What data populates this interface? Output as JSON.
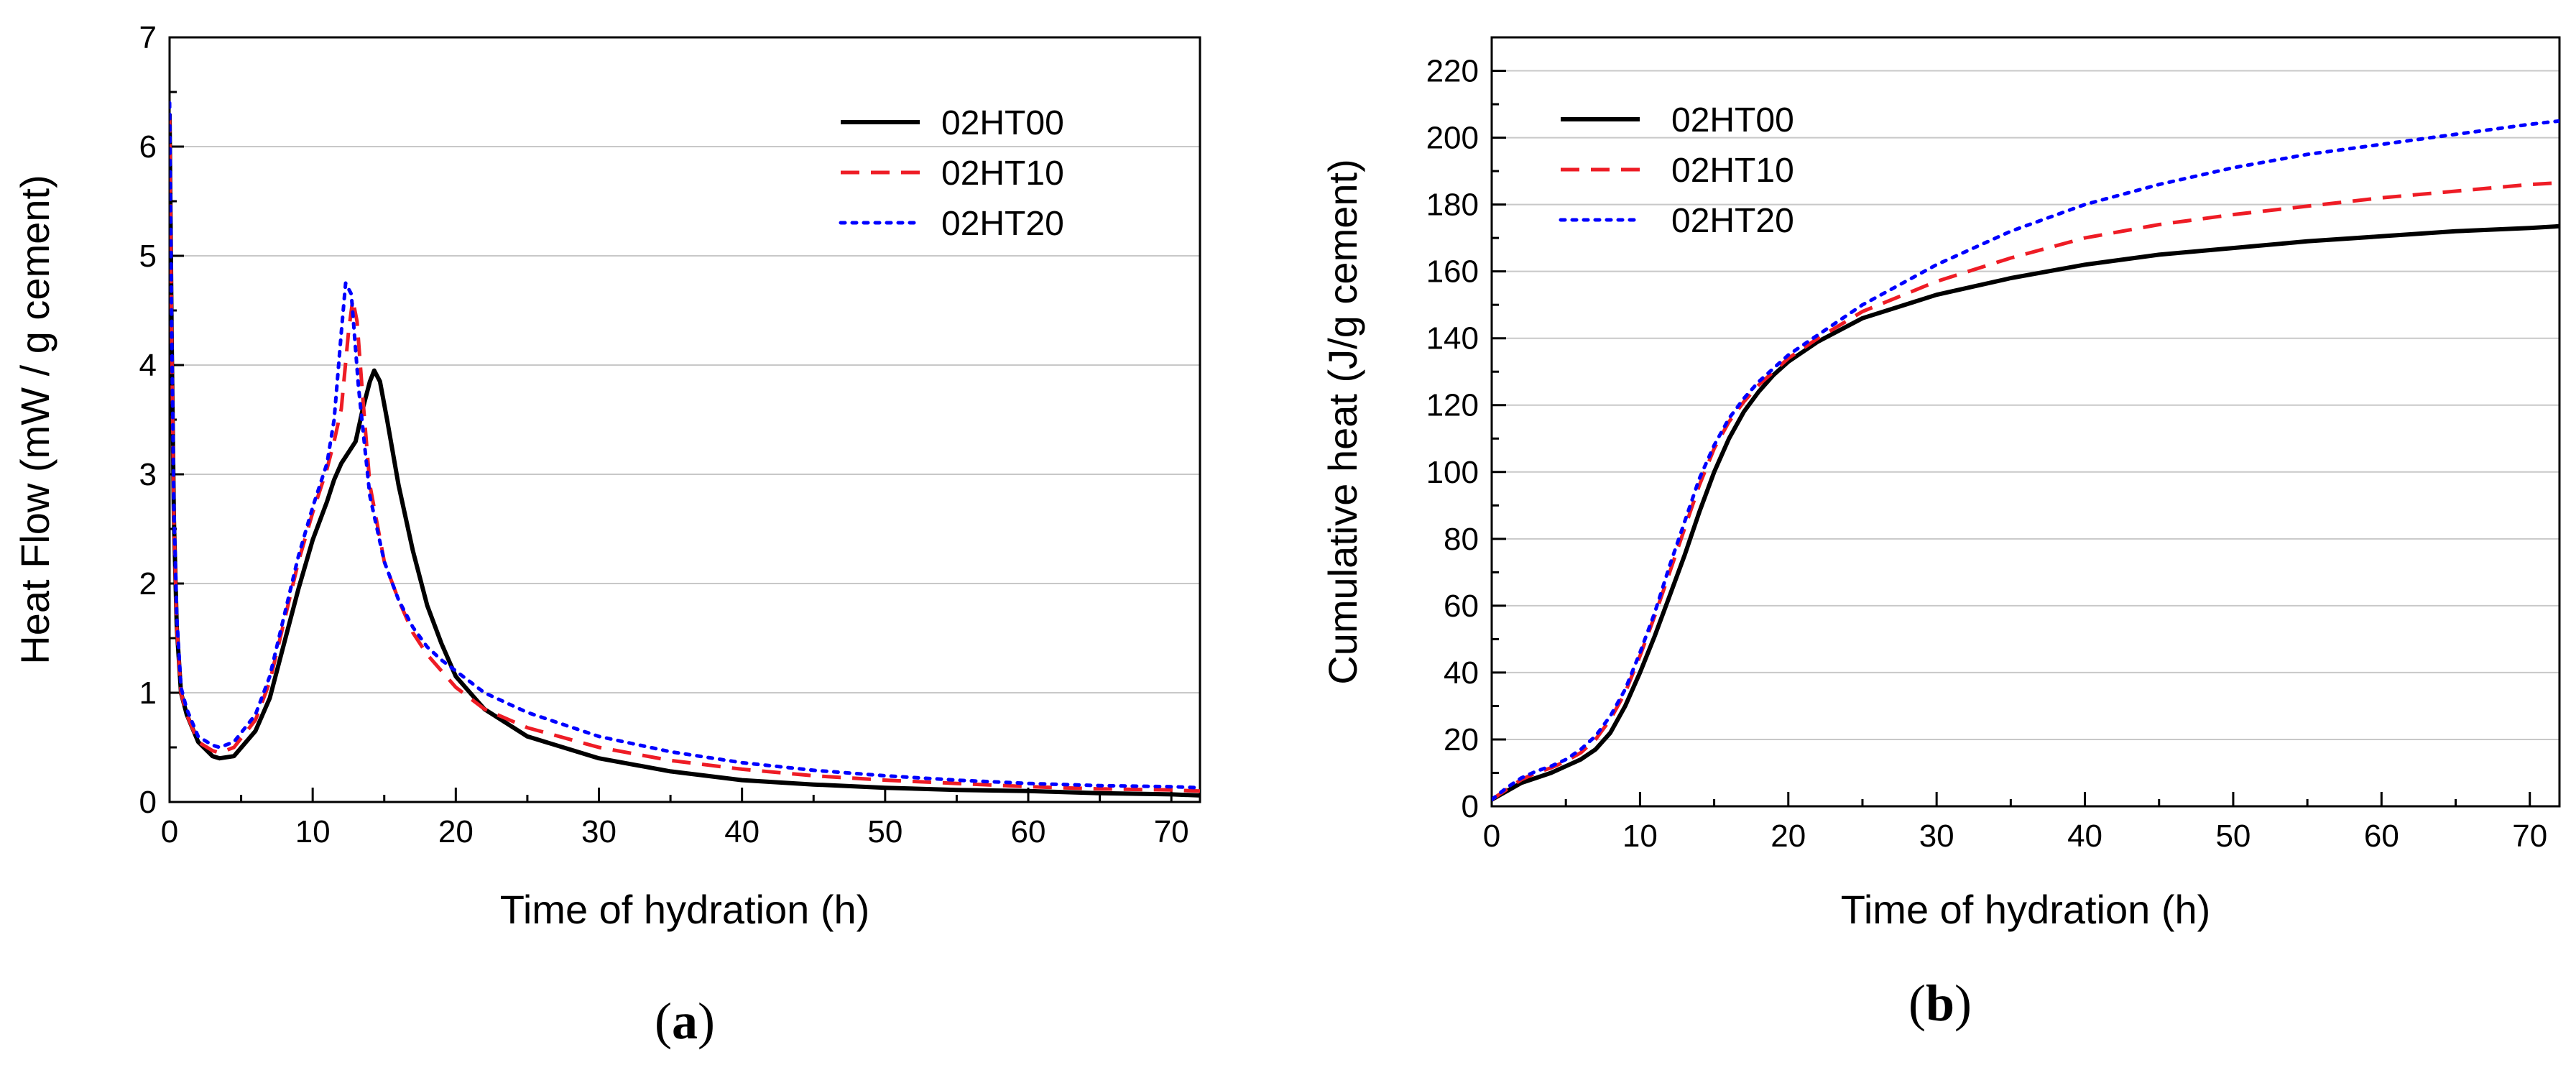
{
  "chart_data": [
    {
      "type": "line",
      "panel_label": "a",
      "xlabel": "Time of hydration (h)",
      "ylabel": "Heat Flow (mW / g cement)",
      "xlim": [
        0,
        72
      ],
      "ylim": [
        0,
        7
      ],
      "xticks": [
        0,
        10,
        20,
        30,
        40,
        50,
        60,
        70
      ],
      "yticks": [
        0,
        1,
        2,
        3,
        4,
        5,
        6,
        7
      ],
      "grid": "horizontal",
      "legend_position": "top-right",
      "series": [
        {
          "name": "02HT00",
          "color": "#000000",
          "style": "solid",
          "points": [
            [
              0,
              6.3
            ],
            [
              0.15,
              4.2
            ],
            [
              0.3,
              2.6
            ],
            [
              0.5,
              1.6
            ],
            [
              0.8,
              1.0
            ],
            [
              1.2,
              0.8
            ],
            [
              2,
              0.55
            ],
            [
              3,
              0.42
            ],
            [
              3.5,
              0.4
            ],
            [
              4.5,
              0.42
            ],
            [
              6,
              0.65
            ],
            [
              7,
              0.95
            ],
            [
              8,
              1.45
            ],
            [
              9,
              1.95
            ],
            [
              10,
              2.4
            ],
            [
              11,
              2.75
            ],
            [
              11.5,
              2.95
            ],
            [
              12,
              3.1
            ],
            [
              13,
              3.3
            ],
            [
              13.5,
              3.6
            ],
            [
              14,
              3.85
            ],
            [
              14.3,
              3.95
            ],
            [
              14.7,
              3.85
            ],
            [
              15.2,
              3.5
            ],
            [
              16,
              2.9
            ],
            [
              17,
              2.3
            ],
            [
              18,
              1.8
            ],
            [
              19,
              1.45
            ],
            [
              20,
              1.15
            ],
            [
              22,
              0.85
            ],
            [
              25,
              0.6
            ],
            [
              30,
              0.4
            ],
            [
              35,
              0.28
            ],
            [
              40,
              0.2
            ],
            [
              45,
              0.16
            ],
            [
              50,
              0.13
            ],
            [
              55,
              0.11
            ],
            [
              60,
              0.1
            ],
            [
              65,
              0.08
            ],
            [
              70,
              0.07
            ],
            [
              72,
              0.06
            ]
          ]
        },
        {
          "name": "02HT10",
          "color": "#ee1c25",
          "style": "dashed",
          "points": [
            [
              0,
              6.3
            ],
            [
              0.15,
              4.2
            ],
            [
              0.3,
              2.6
            ],
            [
              0.5,
              1.6
            ],
            [
              0.8,
              1.0
            ],
            [
              1.2,
              0.8
            ],
            [
              2,
              0.55
            ],
            [
              3,
              0.47
            ],
            [
              3.5,
              0.45
            ],
            [
              4.5,
              0.5
            ],
            [
              6,
              0.75
            ],
            [
              7,
              1.1
            ],
            [
              8,
              1.65
            ],
            [
              9,
              2.2
            ],
            [
              10,
              2.65
            ],
            [
              11,
              3.05
            ],
            [
              11.5,
              3.3
            ],
            [
              12,
              3.6
            ],
            [
              12.5,
              4.3
            ],
            [
              12.8,
              4.6
            ],
            [
              13.1,
              4.4
            ],
            [
              13.5,
              3.7
            ],
            [
              14,
              2.9
            ],
            [
              15,
              2.2
            ],
            [
              16,
              1.85
            ],
            [
              17,
              1.55
            ],
            [
              18,
              1.35
            ],
            [
              19,
              1.2
            ],
            [
              20,
              1.05
            ],
            [
              22,
              0.85
            ],
            [
              25,
              0.68
            ],
            [
              30,
              0.5
            ],
            [
              35,
              0.38
            ],
            [
              40,
              0.3
            ],
            [
              45,
              0.24
            ],
            [
              50,
              0.2
            ],
            [
              55,
              0.17
            ],
            [
              60,
              0.14
            ],
            [
              65,
              0.12
            ],
            [
              70,
              0.11
            ],
            [
              72,
              0.1
            ]
          ]
        },
        {
          "name": "02HT20",
          "color": "#0000ff",
          "style": "dotted",
          "points": [
            [
              0,
              6.4
            ],
            [
              0.15,
              4.3
            ],
            [
              0.3,
              2.7
            ],
            [
              0.5,
              1.7
            ],
            [
              0.8,
              1.05
            ],
            [
              1.2,
              0.85
            ],
            [
              2,
              0.6
            ],
            [
              3,
              0.52
            ],
            [
              3.5,
              0.5
            ],
            [
              4.5,
              0.55
            ],
            [
              6,
              0.8
            ],
            [
              7,
              1.15
            ],
            [
              8,
              1.7
            ],
            [
              9,
              2.25
            ],
            [
              10,
              2.7
            ],
            [
              11,
              3.1
            ],
            [
              11.5,
              3.5
            ],
            [
              12,
              4.3
            ],
            [
              12.3,
              4.75
            ],
            [
              12.7,
              4.65
            ],
            [
              13.2,
              3.8
            ],
            [
              14,
              2.8
            ],
            [
              15,
              2.2
            ],
            [
              16,
              1.85
            ],
            [
              17,
              1.6
            ],
            [
              18,
              1.42
            ],
            [
              19,
              1.3
            ],
            [
              20,
              1.2
            ],
            [
              22,
              1.0
            ],
            [
              25,
              0.82
            ],
            [
              30,
              0.6
            ],
            [
              35,
              0.46
            ],
            [
              40,
              0.36
            ],
            [
              45,
              0.29
            ],
            [
              50,
              0.24
            ],
            [
              55,
              0.2
            ],
            [
              60,
              0.17
            ],
            [
              65,
              0.15
            ],
            [
              70,
              0.14
            ],
            [
              72,
              0.13
            ]
          ]
        }
      ]
    },
    {
      "type": "line",
      "panel_label": "b",
      "xlabel": "Time of hydration (h)",
      "ylabel": "Cumulative heat (J/g cement)",
      "xlim": [
        0,
        72
      ],
      "ylim": [
        0,
        230
      ],
      "xticks": [
        0,
        10,
        20,
        30,
        40,
        50,
        60,
        70
      ],
      "yticks": [
        0,
        20,
        40,
        60,
        80,
        100,
        120,
        140,
        160,
        180,
        200,
        220
      ],
      "grid": "horizontal",
      "legend_position": "top-left",
      "series": [
        {
          "name": "02HT00",
          "color": "#000000",
          "style": "solid",
          "points": [
            [
              0,
              2
            ],
            [
              1,
              4.5
            ],
            [
              2,
              7
            ],
            [
              3,
              8.5
            ],
            [
              4,
              10
            ],
            [
              5,
              12
            ],
            [
              6,
              14
            ],
            [
              7,
              17
            ],
            [
              8,
              22
            ],
            [
              9,
              30
            ],
            [
              10,
              40
            ],
            [
              11,
              51
            ],
            [
              12,
              63
            ],
            [
              13,
              75
            ],
            [
              14,
              88
            ],
            [
              15,
              100
            ],
            [
              16,
              110
            ],
            [
              17,
              118
            ],
            [
              18,
              124
            ],
            [
              19,
              129
            ],
            [
              20,
              133
            ],
            [
              22,
              139
            ],
            [
              25,
              146
            ],
            [
              30,
              153
            ],
            [
              35,
              158
            ],
            [
              40,
              162
            ],
            [
              45,
              165
            ],
            [
              50,
              167
            ],
            [
              55,
              169
            ],
            [
              60,
              170.5
            ],
            [
              65,
              172
            ],
            [
              70,
              173
            ],
            [
              72,
              173.5
            ]
          ]
        },
        {
          "name": "02HT10",
          "color": "#ee1c25",
          "style": "dashed",
          "points": [
            [
              0,
              2
            ],
            [
              1,
              5
            ],
            [
              2,
              8
            ],
            [
              3,
              10
            ],
            [
              4,
              11.5
            ],
            [
              5,
              13.5
            ],
            [
              6,
              16
            ],
            [
              7,
              20
            ],
            [
              8,
              26
            ],
            [
              9,
              34
            ],
            [
              10,
              45
            ],
            [
              11,
              57
            ],
            [
              12,
              70
            ],
            [
              13,
              83
            ],
            [
              14,
              96
            ],
            [
              15,
              107
            ],
            [
              16,
              115
            ],
            [
              17,
              121
            ],
            [
              18,
              126
            ],
            [
              19,
              130
            ],
            [
              20,
              134
            ],
            [
              22,
              140
            ],
            [
              25,
              148
            ],
            [
              30,
              157
            ],
            [
              35,
              164
            ],
            [
              40,
              170
            ],
            [
              45,
              174
            ],
            [
              50,
              177
            ],
            [
              55,
              179.5
            ],
            [
              60,
              182
            ],
            [
              65,
              184
            ],
            [
              70,
              186
            ],
            [
              72,
              186.5
            ]
          ]
        },
        {
          "name": "02HT20",
          "color": "#0000ff",
          "style": "dotted",
          "points": [
            [
              0,
              2
            ],
            [
              1,
              5.5
            ],
            [
              2,
              8.5
            ],
            [
              3,
              10.5
            ],
            [
              4,
              12
            ],
            [
              5,
              14
            ],
            [
              6,
              17
            ],
            [
              7,
              21
            ],
            [
              8,
              27
            ],
            [
              9,
              35
            ],
            [
              10,
              46
            ],
            [
              11,
              58
            ],
            [
              12,
              72
            ],
            [
              13,
              85
            ],
            [
              14,
              98
            ],
            [
              15,
              108
            ],
            [
              16,
              116
            ],
            [
              17,
              122
            ],
            [
              18,
              127
            ],
            [
              19,
              131
            ],
            [
              20,
              135
            ],
            [
              22,
              141
            ],
            [
              25,
              150
            ],
            [
              30,
              162
            ],
            [
              35,
              172
            ],
            [
              40,
              180
            ],
            [
              45,
              186
            ],
            [
              50,
              191
            ],
            [
              55,
              195
            ],
            [
              60,
              198
            ],
            [
              65,
              201
            ],
            [
              70,
              204
            ],
            [
              72,
              205
            ]
          ]
        }
      ]
    }
  ]
}
